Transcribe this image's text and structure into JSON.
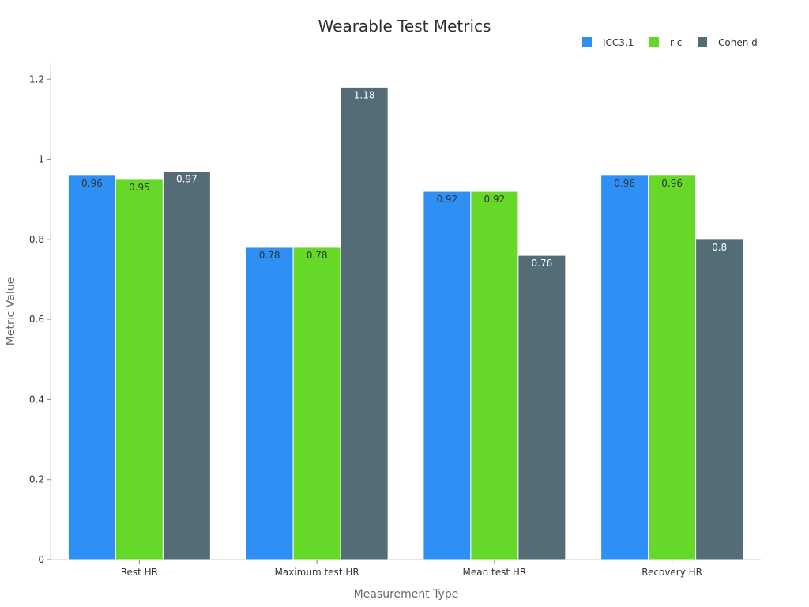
{
  "chart_data": {
    "type": "bar",
    "title": "Wearable Test Metrics",
    "xlabel": "Measurement Type",
    "ylabel": "Metric Value",
    "categories": [
      "Rest HR",
      "Maximum test HR",
      "Mean test HR",
      "Recovery HR"
    ],
    "series": [
      {
        "name": "ICC3.1",
        "color": "#2e90f5",
        "label_color": "#333333",
        "values": [
          0.96,
          0.78,
          0.92,
          0.96
        ]
      },
      {
        "name": "r c",
        "color": "#66d928",
        "label_color": "#333333",
        "values": [
          0.95,
          0.78,
          0.92,
          0.96
        ]
      },
      {
        "name": "Cohen d",
        "color": "#546c76",
        "label_color": "#ffffff",
        "values": [
          0.97,
          1.18,
          0.76,
          0.8
        ]
      }
    ],
    "ylim": [
      0,
      1.24
    ],
    "yticks": [
      0,
      0.2,
      0.4,
      0.6,
      0.8,
      1,
      1.2
    ],
    "ytick_labels": [
      "0",
      "0.2",
      "0.4",
      "0.6",
      "0.8",
      "1",
      "1.2"
    ],
    "grid": false,
    "legend_position": "top-right"
  }
}
